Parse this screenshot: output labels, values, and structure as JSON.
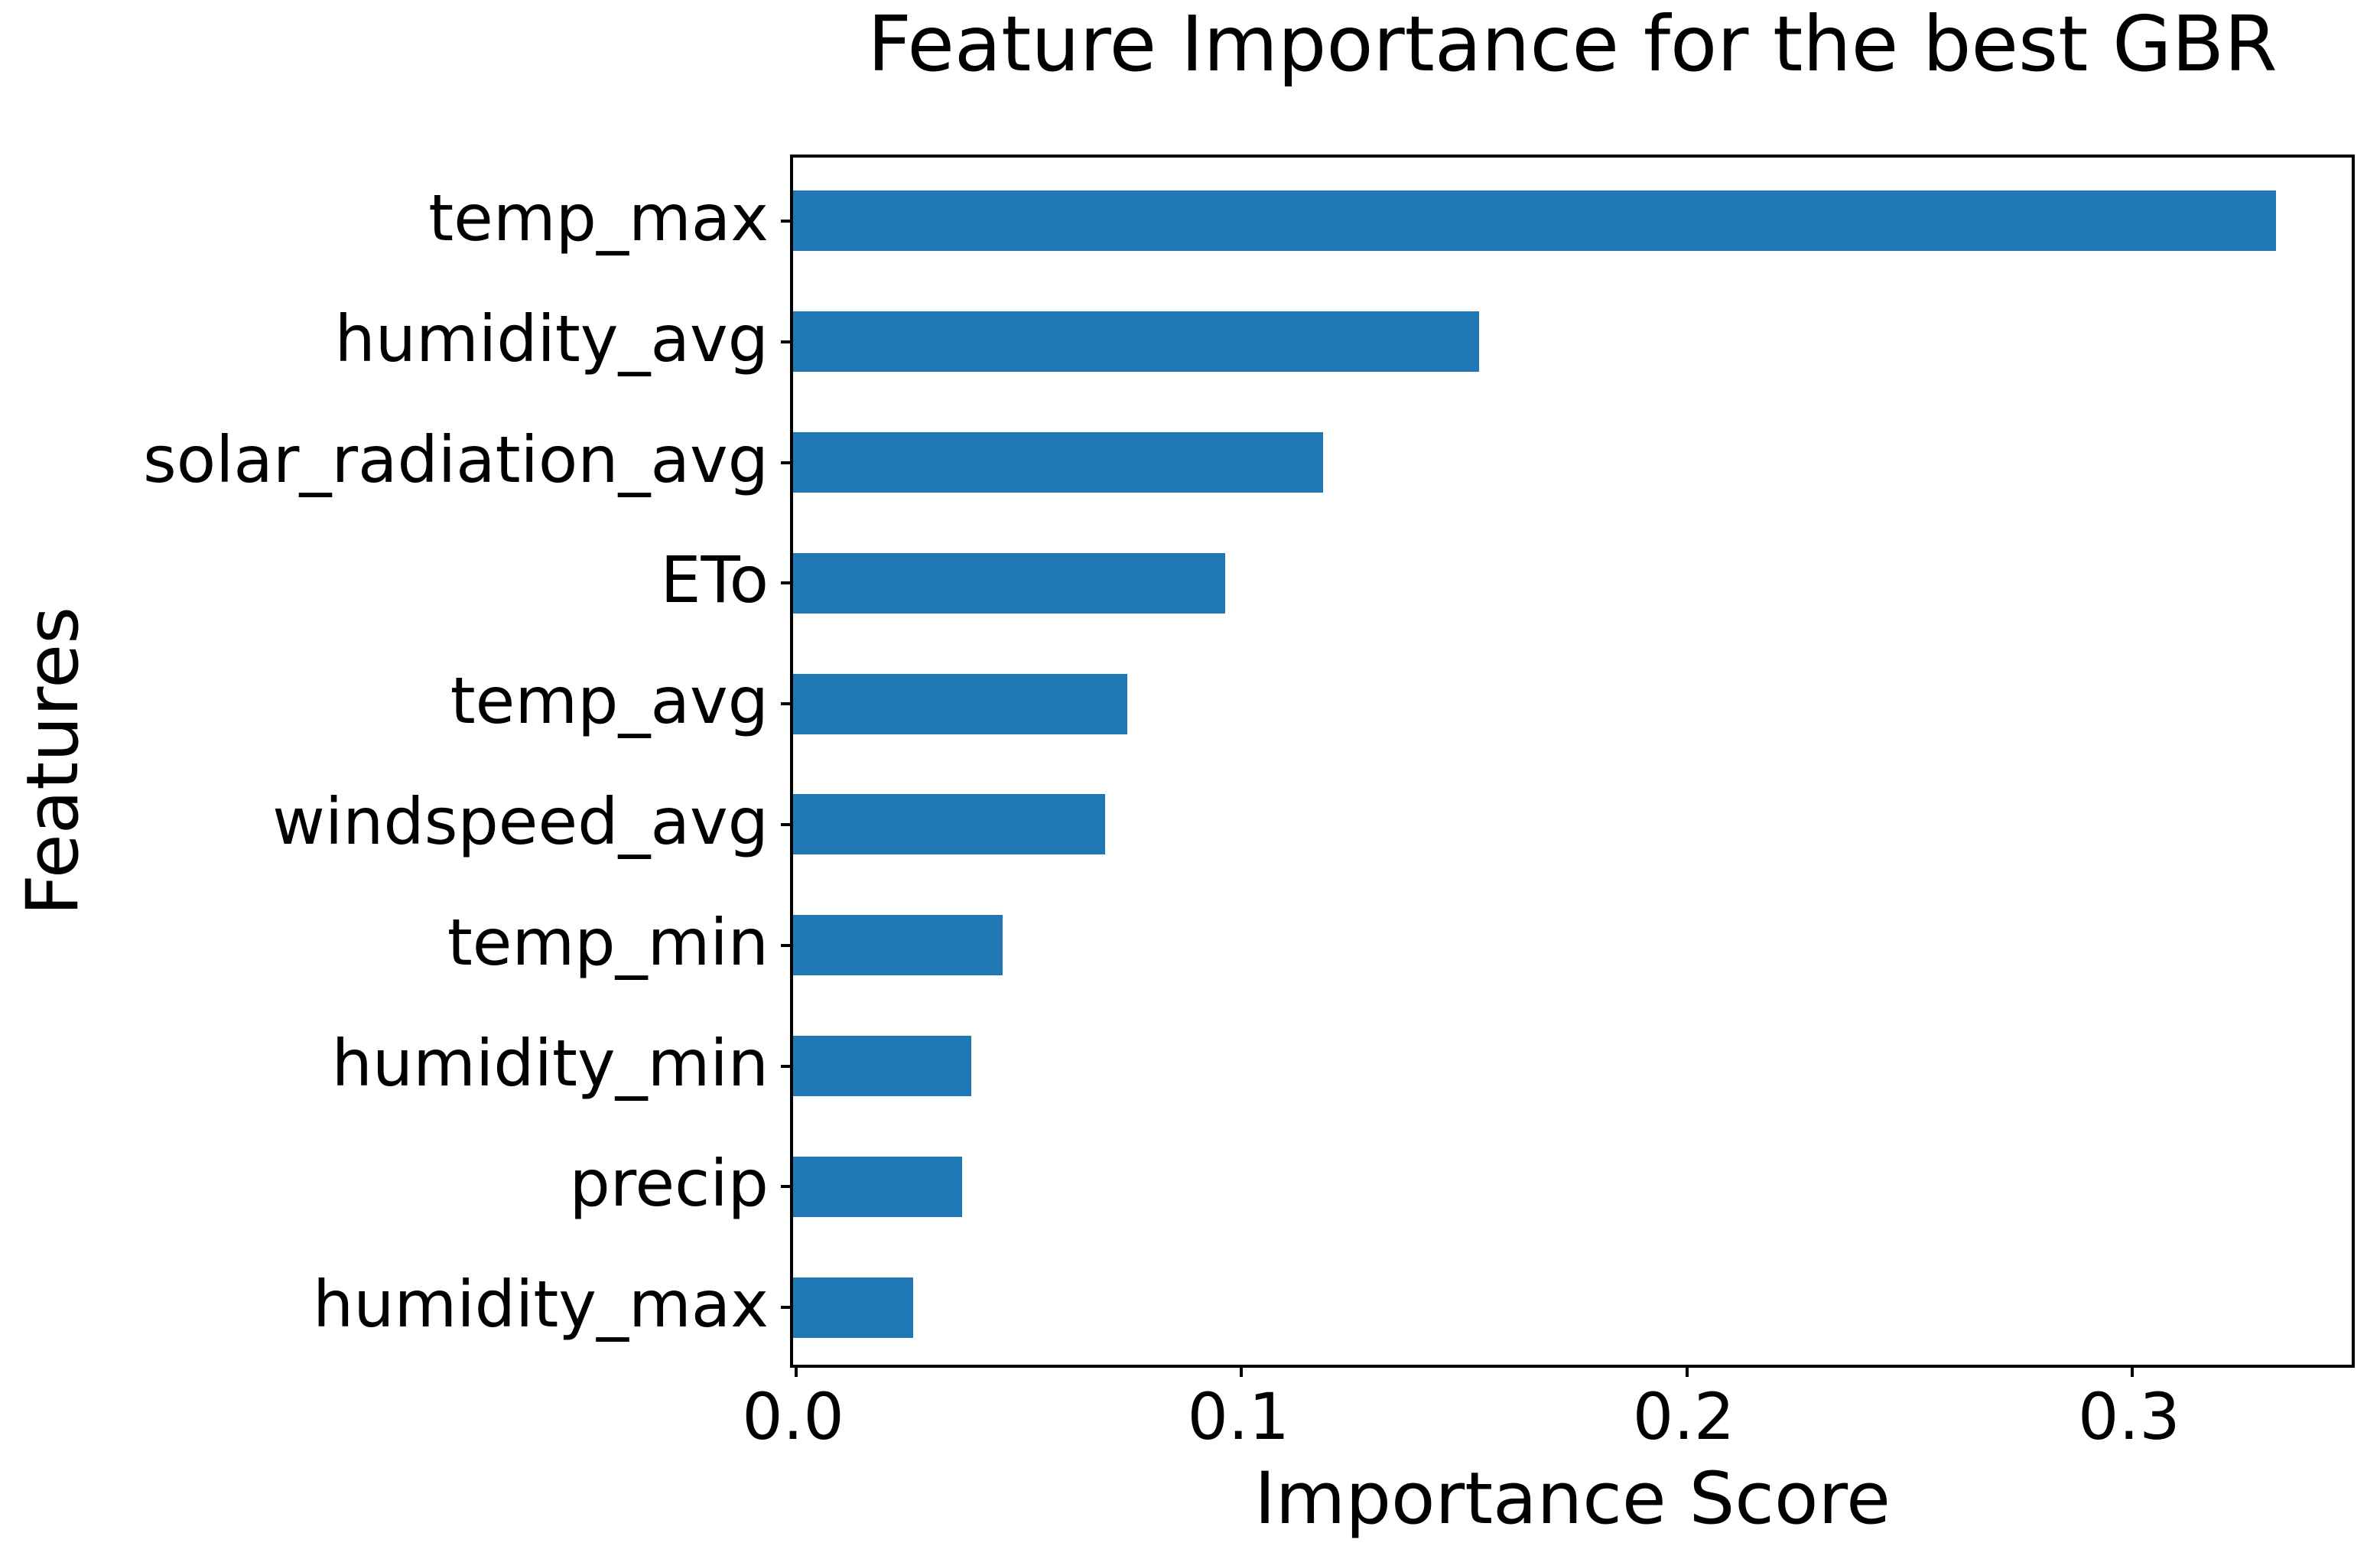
{
  "chart_data": {
    "type": "bar",
    "orientation": "horizontal",
    "title": "Feature Importance for the best GBR",
    "xlabel": "Importance Score",
    "ylabel": "Features",
    "categories": [
      "temp_max",
      "humidity_avg",
      "solar_radiation_avg",
      "ETo",
      "temp_avg",
      "windspeed_avg",
      "temp_min",
      "humidity_min",
      "precip",
      "humidity_max"
    ],
    "values": [
      0.333,
      0.154,
      0.119,
      0.097,
      0.075,
      0.07,
      0.047,
      0.04,
      0.038,
      0.027
    ],
    "xtick_labels": [
      "0.0",
      "0.1",
      "0.2",
      "0.3"
    ],
    "xtick_values": [
      0.0,
      0.1,
      0.2,
      0.3
    ],
    "xlim": [
      0,
      0.35
    ],
    "bar_color": "#1f77b4",
    "axis_color": "#000000",
    "grid": false,
    "legend": "none"
  }
}
